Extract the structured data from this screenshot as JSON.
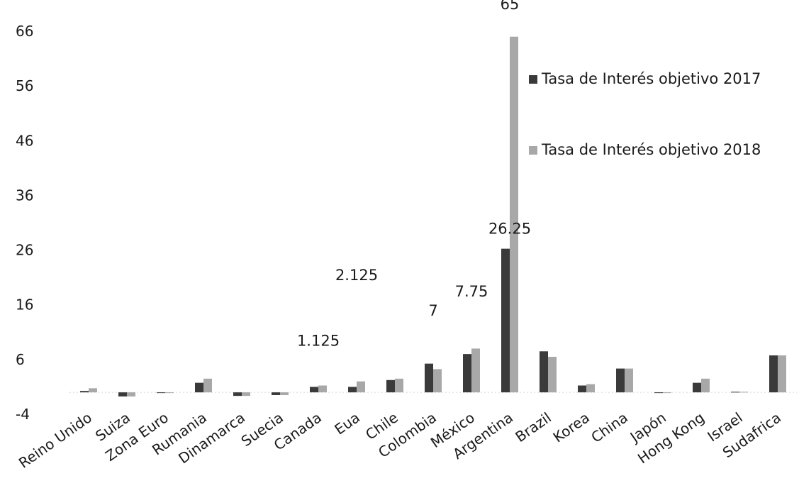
{
  "chart_data": {
    "type": "bar",
    "categories": [
      "Reino Unido",
      "Suiza",
      "Zona Euro",
      "Rumania",
      "Dinamarca",
      "Suecia",
      "Canada",
      "Eua",
      "Chile",
      "Colombia",
      "México",
      "Argentina",
      "Brazil",
      "Korea",
      "China",
      "Japón",
      "Hong Kong",
      "Israel",
      "Sudafrica"
    ],
    "series": [
      {
        "name": "Tasa de Interés objetivo 2017",
        "color": "#3a3a3a",
        "values": [
          0.25,
          -0.75,
          0,
          1.75,
          -0.65,
          -0.5,
          1,
          1,
          2.25,
          5.25,
          7,
          26.25,
          7.5,
          1.25,
          4.35,
          -0.1,
          1.75,
          0.1,
          6.75
        ]
      },
      {
        "name": "Tasa de Interés objetivo 2018",
        "color": "#a8a8a8",
        "values": [
          0.75,
          -0.75,
          0,
          2.5,
          -0.65,
          -0.5,
          1.25,
          2,
          2.5,
          4.25,
          8,
          65,
          6.5,
          1.5,
          4.35,
          -0.1,
          2.5,
          0.1,
          6.75
        ]
      }
    ],
    "ylim": [
      -4,
      66
    ],
    "yticks": [
      -4,
      6,
      16,
      26,
      36,
      46,
      56,
      66
    ],
    "annotations": [
      {
        "text": "1.125",
        "x": "Canada",
        "y": 8.5
      },
      {
        "text": "2.125",
        "x": "Eua",
        "y": 20.5
      },
      {
        "text": "7",
        "x": "Colombia",
        "y": 14
      },
      {
        "text": "7.75",
        "x": "México",
        "y": 17.5
      },
      {
        "text": "26.25",
        "x": "Argentina",
        "y": 29
      },
      {
        "text": "65",
        "x": "Argentina",
        "y": 70
      }
    ],
    "legend_position": "right",
    "grid": false
  }
}
